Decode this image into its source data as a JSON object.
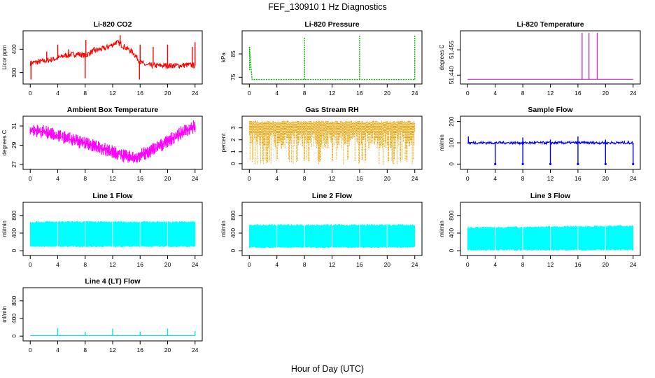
{
  "figure": {
    "title": "FEF_130910  1 Hz Diagnostics",
    "xlabel": "Hour of Day (UTC)"
  },
  "chart_data": [
    {
      "type": "line",
      "title": "Li-820 CO2",
      "xlabel": "",
      "ylabel": "Licor ppm",
      "xlim": [
        0,
        24
      ],
      "ylim": [
        260,
        470
      ],
      "xticks": [
        0,
        4,
        8,
        12,
        16,
        20,
        24
      ],
      "yticks": [
        300,
        400
      ],
      "color": "#ff0000",
      "series": [
        {
          "x": [
            0,
            1,
            2,
            3,
            4,
            5,
            6,
            7,
            8,
            9,
            10,
            11,
            12,
            12.5,
            13,
            14,
            15,
            16,
            17,
            18,
            19,
            20,
            21,
            22,
            23,
            24
          ],
          "y": [
            340,
            345,
            350,
            355,
            362,
            372,
            378,
            380,
            372,
            390,
            398,
            405,
            420,
            430,
            425,
            405,
            385,
            345,
            330,
            330,
            330,
            330,
            330,
            330,
            332,
            330
          ]
        }
      ],
      "spikes": [
        {
          "x": 0.1,
          "y": 270
        },
        {
          "x": 2.4,
          "y": 390
        },
        {
          "x": 4.0,
          "y": 420
        },
        {
          "x": 5.6,
          "y": 400
        },
        {
          "x": 8.0,
          "y": 275
        },
        {
          "x": 8.1,
          "y": 440
        },
        {
          "x": 9.3,
          "y": 410
        },
        {
          "x": 11.4,
          "y": 415
        },
        {
          "x": 13.1,
          "y": 460
        },
        {
          "x": 15.9,
          "y": 270
        },
        {
          "x": 16.0,
          "y": 420
        },
        {
          "x": 17.9,
          "y": 410
        },
        {
          "x": 20.0,
          "y": 420
        },
        {
          "x": 23.6,
          "y": 410
        },
        {
          "x": 24.0,
          "y": 430
        }
      ],
      "noise": 12
    },
    {
      "type": "line",
      "title": "Li-820 Pressure",
      "xlabel": "",
      "ylabel": "kPa",
      "xlim": [
        0,
        24
      ],
      "ylim": [
        73,
        94
      ],
      "xticks": [
        0,
        4,
        8,
        12,
        16,
        20,
        24
      ],
      "yticks": [
        75,
        85
      ],
      "color": "#00bb00",
      "series": [
        {
          "x": [
            0,
            0.05,
            0.3,
            24
          ],
          "y": [
            88,
            78,
            74,
            74
          ]
        }
      ],
      "spikes": [
        {
          "x": 0.05,
          "y": 88
        },
        {
          "x": 8.0,
          "y": 92
        },
        {
          "x": 16.0,
          "y": 93
        },
        {
          "x": 24.0,
          "y": 93
        }
      ],
      "noise": 0
    },
    {
      "type": "line",
      "title": "Li-820 Temperature",
      "xlabel": "",
      "ylabel": "degrees C",
      "xlim": [
        0,
        24
      ],
      "ylim": [
        51.436,
        51.465
      ],
      "xticks": [
        0,
        4,
        8,
        12,
        16,
        20,
        24
      ],
      "yticks": [
        51.44,
        51.455
      ],
      "ytick_labels": [
        "51.440",
        "51.455"
      ],
      "color": "#cc33cc",
      "series": [
        {
          "x": [
            0,
            24
          ],
          "y": [
            51.4375,
            51.4375
          ]
        }
      ],
      "spikes": [
        {
          "x": 16.6,
          "y": 51.465
        },
        {
          "x": 17.6,
          "y": 51.465
        },
        {
          "x": 18.8,
          "y": 51.465
        }
      ],
      "noise": 0
    },
    {
      "type": "line",
      "title": "Ambient Box Temperature",
      "xlabel": "",
      "ylabel": "degrees C",
      "xlim": [
        0,
        24
      ],
      "ylim": [
        26.7,
        31.8
      ],
      "xticks": [
        0,
        4,
        8,
        12,
        16,
        20,
        24
      ],
      "yticks": [
        27,
        29,
        31
      ],
      "color": "#ff00ff",
      "series": [
        {
          "x": [
            0,
            2,
            4,
            6,
            8,
            10,
            12,
            14,
            15,
            16,
            18,
            20,
            22,
            24
          ],
          "y": [
            30.6,
            30.4,
            30.0,
            29.6,
            29.2,
            28.8,
            28.3,
            27.8,
            27.7,
            27.9,
            28.6,
            29.4,
            30.3,
            31.0
          ]
        }
      ],
      "spikes": [],
      "noise": 0.7
    },
    {
      "type": "line",
      "title": "Gas Stream RH",
      "xlabel": "",
      "ylabel": "percent",
      "xlim": [
        0,
        24
      ],
      "ylim": [
        -0.3,
        3.8
      ],
      "xticks": [
        0,
        4,
        8,
        12,
        16,
        20,
        24
      ],
      "yticks": [
        0,
        1,
        2,
        3
      ],
      "color": "#e8a000",
      "series": [
        {
          "x": [
            0,
            24
          ],
          "y": [
            3.5,
            3.5
          ]
        }
      ],
      "band_low": 1.2,
      "spikes": [],
      "noise": 0
    },
    {
      "type": "line",
      "title": "Sample Flow",
      "xlabel": "",
      "ylabel": "ml/min",
      "xlim": [
        0,
        24
      ],
      "ylim": [
        -15,
        215
      ],
      "xticks": [
        0,
        4,
        8,
        12,
        16,
        20,
        24
      ],
      "yticks": [
        0,
        100,
        200
      ],
      "color": "#0000ff",
      "series": [
        {
          "x": [
            0,
            24
          ],
          "y": [
            100,
            100
          ]
        }
      ],
      "spikes": [
        {
          "x": 0.1,
          "y": 130
        },
        {
          "x": 4.0,
          "y": 0
        },
        {
          "x": 8.0,
          "y": 0
        },
        {
          "x": 8.0,
          "y": 125
        },
        {
          "x": 12.0,
          "y": 0
        },
        {
          "x": 12.0,
          "y": 115
        },
        {
          "x": 16.0,
          "y": 0
        },
        {
          "x": 16.0,
          "y": 130
        },
        {
          "x": 20.0,
          "y": 0
        },
        {
          "x": 20.0,
          "y": 115
        },
        {
          "x": 24.0,
          "y": 0
        }
      ],
      "noise": 6
    },
    {
      "type": "area",
      "title": "Line 1 Flow",
      "xlabel": "",
      "ylabel": "ml/min",
      "xlim": [
        0,
        24
      ],
      "ylim": [
        -60,
        1050
      ],
      "xticks": [
        0,
        4,
        8,
        12,
        16,
        20,
        24
      ],
      "yticks": [
        0,
        400,
        800
      ],
      "color": "#00ffff",
      "series": [
        {
          "x": [
            0,
            24
          ],
          "y_high": [
            650,
            650
          ],
          "y_low": [
            100,
            100
          ]
        }
      ],
      "gaps": [
        4,
        8,
        12,
        16,
        20
      ],
      "noise": 0
    },
    {
      "type": "area",
      "title": "Line 2 Flow",
      "xlabel": "",
      "ylabel": "ml/min",
      "xlim": [
        0,
        24
      ],
      "ylim": [
        -60,
        1050
      ],
      "xticks": [
        0,
        4,
        8,
        12,
        16,
        20,
        24
      ],
      "yticks": [
        0,
        400,
        800
      ],
      "color": "#00ffff",
      "series": [
        {
          "x": [
            0,
            24
          ],
          "y_high": [
            580,
            580
          ],
          "y_low": [
            80,
            80
          ]
        }
      ],
      "gaps": [
        4,
        8,
        12,
        16,
        20
      ],
      "noise": 0
    },
    {
      "type": "area",
      "title": "Line 3 Flow",
      "xlabel": "",
      "ylabel": "ml/min",
      "xlim": [
        0,
        24
      ],
      "ylim": [
        -60,
        1050
      ],
      "xticks": [
        0,
        4,
        8,
        12,
        16,
        20,
        24
      ],
      "yticks": [
        0,
        400,
        800
      ],
      "color": "#00ffff",
      "series": [
        {
          "x": [
            0,
            24
          ],
          "y_high": [
            520,
            560
          ],
          "y_low": [
            20,
            20
          ]
        }
      ],
      "gaps": [
        4,
        8,
        12,
        16,
        20
      ],
      "noise": 0
    },
    {
      "type": "line",
      "title": "Line 4 (LT) Flow",
      "xlabel": "",
      "ylabel": "ml/min",
      "xlim": [
        0,
        24
      ],
      "ylim": [
        -60,
        1050
      ],
      "xticks": [
        0,
        4,
        8,
        12,
        16,
        20,
        24
      ],
      "yticks": [
        0,
        400,
        800
      ],
      "color": "#00e5e5",
      "series": [
        {
          "x": [
            0,
            24
          ],
          "y": [
            10,
            10
          ]
        }
      ],
      "spikes": [
        {
          "x": 4.0,
          "y": 180
        },
        {
          "x": 8.0,
          "y": 100
        },
        {
          "x": 12.0,
          "y": 170
        },
        {
          "x": 16.0,
          "y": 100
        },
        {
          "x": 20.0,
          "y": 170
        },
        {
          "x": 24.0,
          "y": 110
        }
      ],
      "noise": 0
    }
  ]
}
